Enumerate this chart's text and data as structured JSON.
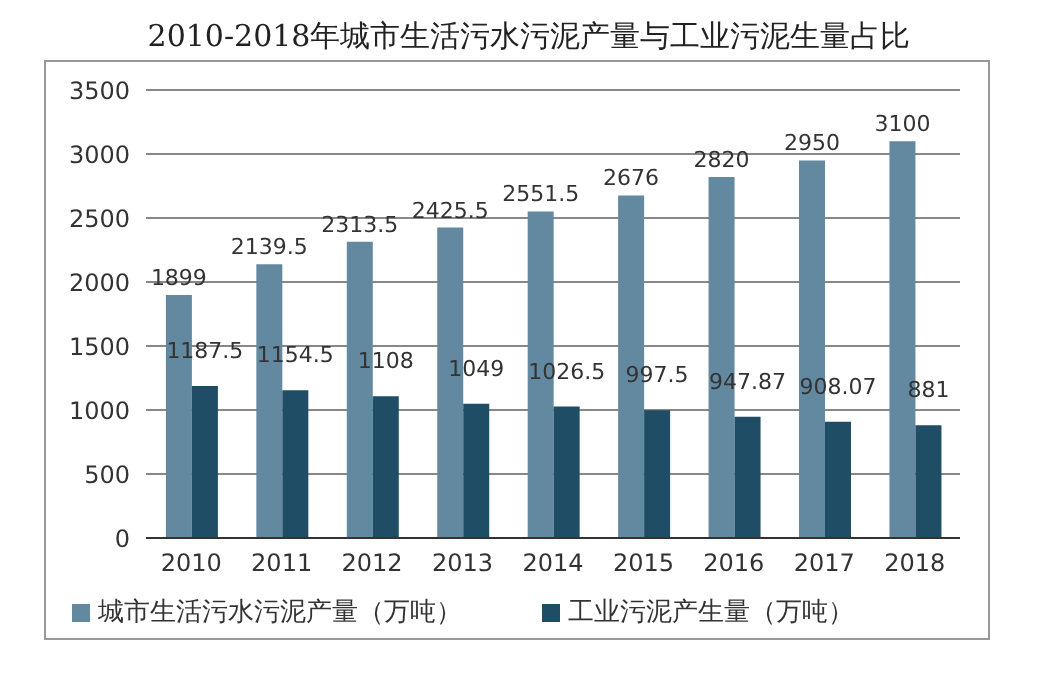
{
  "chart_data": {
    "type": "bar",
    "title": "2010-2018年城市生活污水污泥产量与工业污泥生量占比",
    "categories": [
      "2010",
      "2011",
      "2012",
      "2013",
      "2014",
      "2015",
      "2016",
      "2017",
      "2018"
    ],
    "series": [
      {
        "name": "城市生活污水污泥产量（万吨）",
        "color": "#6389a0",
        "values": [
          1899,
          2139.5,
          2313.5,
          2425.5,
          2551.5,
          2676,
          2820,
          2950,
          3100
        ]
      },
      {
        "name": "工业污泥产生量（万吨）",
        "color": "#1f4d66",
        "values": [
          1187.5,
          1154.5,
          1108,
          1049,
          1026.5,
          997.5,
          947.87,
          908.07,
          881
        ]
      }
    ],
    "ylim": [
      0,
      3500
    ],
    "yticks": [
      0,
      500,
      1000,
      1500,
      2000,
      2500,
      3000,
      3500
    ],
    "grid": "y",
    "legend": "bottom",
    "data_labels": true
  }
}
